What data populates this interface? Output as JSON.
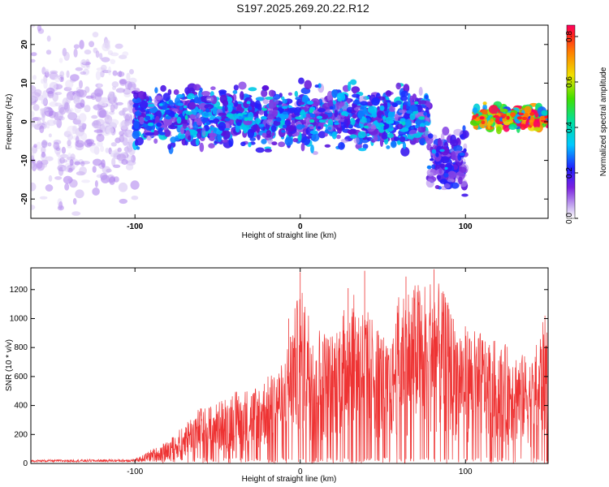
{
  "title": "S197.2025.269.20.22.R12",
  "chart_data": [
    {
      "type": "heatmap",
      "name": "spectrogram",
      "xlabel": "Height of straight line (km)",
      "ylabel": "Frequency (Hz)",
      "xlim": [
        -163,
        150
      ],
      "ylim": [
        -25,
        25
      ],
      "xticks": [
        -100,
        0,
        100
      ],
      "yticks": [
        -20,
        -10,
        0,
        10,
        20
      ],
      "colorbar": {
        "label": "Normalized spectral amplitude",
        "range": [
          0.0,
          0.85
        ],
        "ticks": [
          0.0,
          0.2,
          0.4,
          0.6,
          0.8
        ]
      },
      "regions": [
        {
          "name": "noise",
          "x": [
            -163,
            -100
          ],
          "freq_center": 0,
          "freq_spread": 25,
          "amplitude": 0.05
        },
        {
          "name": "signal-band",
          "x": [
            -100,
            78
          ],
          "freq_center": 1,
          "freq_spread": 8,
          "amplitude": 0.2
        },
        {
          "name": "dip",
          "x": [
            78,
            100
          ],
          "freq_center": -10,
          "freq_spread": 8,
          "amplitude": 0.15
        },
        {
          "name": "strong-tone",
          "x": [
            105,
            150
          ],
          "freq_center": 1,
          "freq_spread": 3,
          "amplitude": 0.55
        }
      ],
      "peak": {
        "x": 110,
        "freq": 1,
        "amplitude": 0.82
      }
    },
    {
      "type": "line",
      "name": "snr",
      "xlabel": "Height of straight line (km)",
      "ylabel": "SNR (10 * v/v)",
      "xlim": [
        -163,
        150
      ],
      "ylim": [
        0,
        1350
      ],
      "xticks": [
        -100,
        0,
        100
      ],
      "yticks": [
        0,
        200,
        400,
        600,
        800,
        1000,
        1200
      ],
      "color": "#ee3333",
      "envelope": [
        {
          "x": -163,
          "max": 25
        },
        {
          "x": -100,
          "max": 30
        },
        {
          "x": -95,
          "max": 60
        },
        {
          "x": -90,
          "max": 100
        },
        {
          "x": -80,
          "max": 150
        },
        {
          "x": -62,
          "max": 380
        },
        {
          "x": -50,
          "max": 420
        },
        {
          "x": -40,
          "max": 510
        },
        {
          "x": -30,
          "max": 520
        },
        {
          "x": -20,
          "max": 600
        },
        {
          "x": -10,
          "max": 700
        },
        {
          "x": -5,
          "max": 1000
        },
        {
          "x": 0,
          "max": 1220
        },
        {
          "x": 10,
          "max": 960
        },
        {
          "x": 20,
          "max": 900
        },
        {
          "x": 30,
          "max": 1200
        },
        {
          "x": 45,
          "max": 1000
        },
        {
          "x": 55,
          "max": 800
        },
        {
          "x": 60,
          "max": 1200
        },
        {
          "x": 70,
          "max": 1250
        },
        {
          "x": 78,
          "max": 1300
        },
        {
          "x": 85,
          "max": 1230
        },
        {
          "x": 95,
          "max": 980
        },
        {
          "x": 110,
          "max": 900
        },
        {
          "x": 125,
          "max": 820
        },
        {
          "x": 140,
          "max": 720
        },
        {
          "x": 150,
          "max": 1100
        }
      ],
      "spikes": [
        {
          "x": 39,
          "y": 1330
        },
        {
          "x": 81,
          "y": 1340
        },
        {
          "x": 0,
          "y": 1320
        },
        {
          "x": 29,
          "y": 1210
        },
        {
          "x": 64,
          "y": 1290
        },
        {
          "x": -7,
          "y": 1000
        }
      ]
    }
  ]
}
